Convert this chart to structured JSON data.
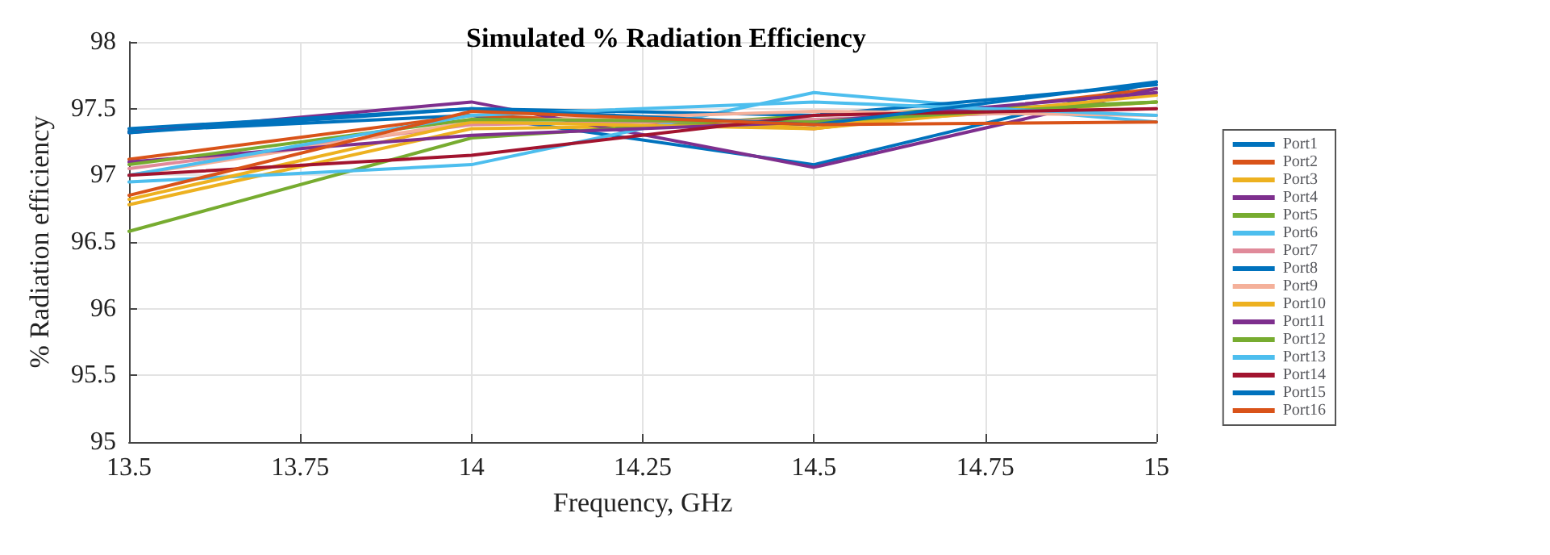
{
  "chart_data": {
    "type": "line",
    "title": "Simulated % Radiation Efficiency",
    "xlabel": "Frequency, GHz",
    "ylabel": "% Radiation efficiency",
    "x": [
      13.5,
      14,
      14.5,
      15
    ],
    "xlim": [
      13.5,
      15
    ],
    "xticks": [
      13.5,
      13.75,
      14,
      14.25,
      14.5,
      14.75,
      15
    ],
    "ylim": [
      95,
      98
    ],
    "yticks": [
      95,
      95.5,
      96,
      96.5,
      97,
      97.5,
      98
    ],
    "grid": true,
    "legend": "right",
    "line_style": "solid",
    "marker": "none",
    "series": [
      {
        "name": "Port1",
        "color": "#0072bd",
        "values": [
          97.33,
          97.45,
          97.08,
          97.7
        ]
      },
      {
        "name": "Port2",
        "color": "#d95319",
        "values": [
          97.12,
          97.45,
          97.35,
          97.65
        ]
      },
      {
        "name": "Port3",
        "color": "#edb120",
        "values": [
          96.78,
          97.35,
          97.38,
          97.55
        ]
      },
      {
        "name": "Port4",
        "color": "#7e2f8e",
        "values": [
          97.32,
          97.55,
          97.06,
          97.65
        ]
      },
      {
        "name": "Port5",
        "color": "#77ac30",
        "values": [
          96.58,
          97.28,
          97.45,
          97.55
        ]
      },
      {
        "name": "Port6",
        "color": "#4dbeee",
        "values": [
          96.95,
          97.08,
          97.62,
          97.4
        ]
      },
      {
        "name": "Port7",
        "color": "#e08a9a",
        "values": [
          97.05,
          97.38,
          97.42,
          97.5
        ]
      },
      {
        "name": "Port8",
        "color": "#0072bd",
        "values": [
          97.35,
          97.5,
          97.45,
          97.68
        ]
      },
      {
        "name": "Port9",
        "color": "#f4b09a",
        "values": [
          97,
          97.4,
          97.48,
          97.45
        ]
      },
      {
        "name": "Port10",
        "color": "#edb120",
        "values": [
          96.82,
          97.4,
          97.35,
          97.6
        ]
      },
      {
        "name": "Port11",
        "color": "#7e2f8e",
        "values": [
          97.1,
          97.3,
          97.4,
          97.62
        ]
      },
      {
        "name": "Port12",
        "color": "#77ac30",
        "values": [
          97.08,
          97.42,
          97.4,
          97.55
        ]
      },
      {
        "name": "Port13",
        "color": "#4dbeee",
        "values": [
          97,
          97.45,
          97.55,
          97.45
        ]
      },
      {
        "name": "Port14",
        "color": "#a2142f",
        "values": [
          97,
          97.15,
          97.45,
          97.5
        ]
      },
      {
        "name": "Port15",
        "color": "#0072bd",
        "values": [
          97.32,
          97.5,
          97.38,
          97.7
        ]
      },
      {
        "name": "Port16",
        "color": "#d95319",
        "values": [
          96.85,
          97.48,
          97.38,
          97.4
        ]
      }
    ]
  }
}
